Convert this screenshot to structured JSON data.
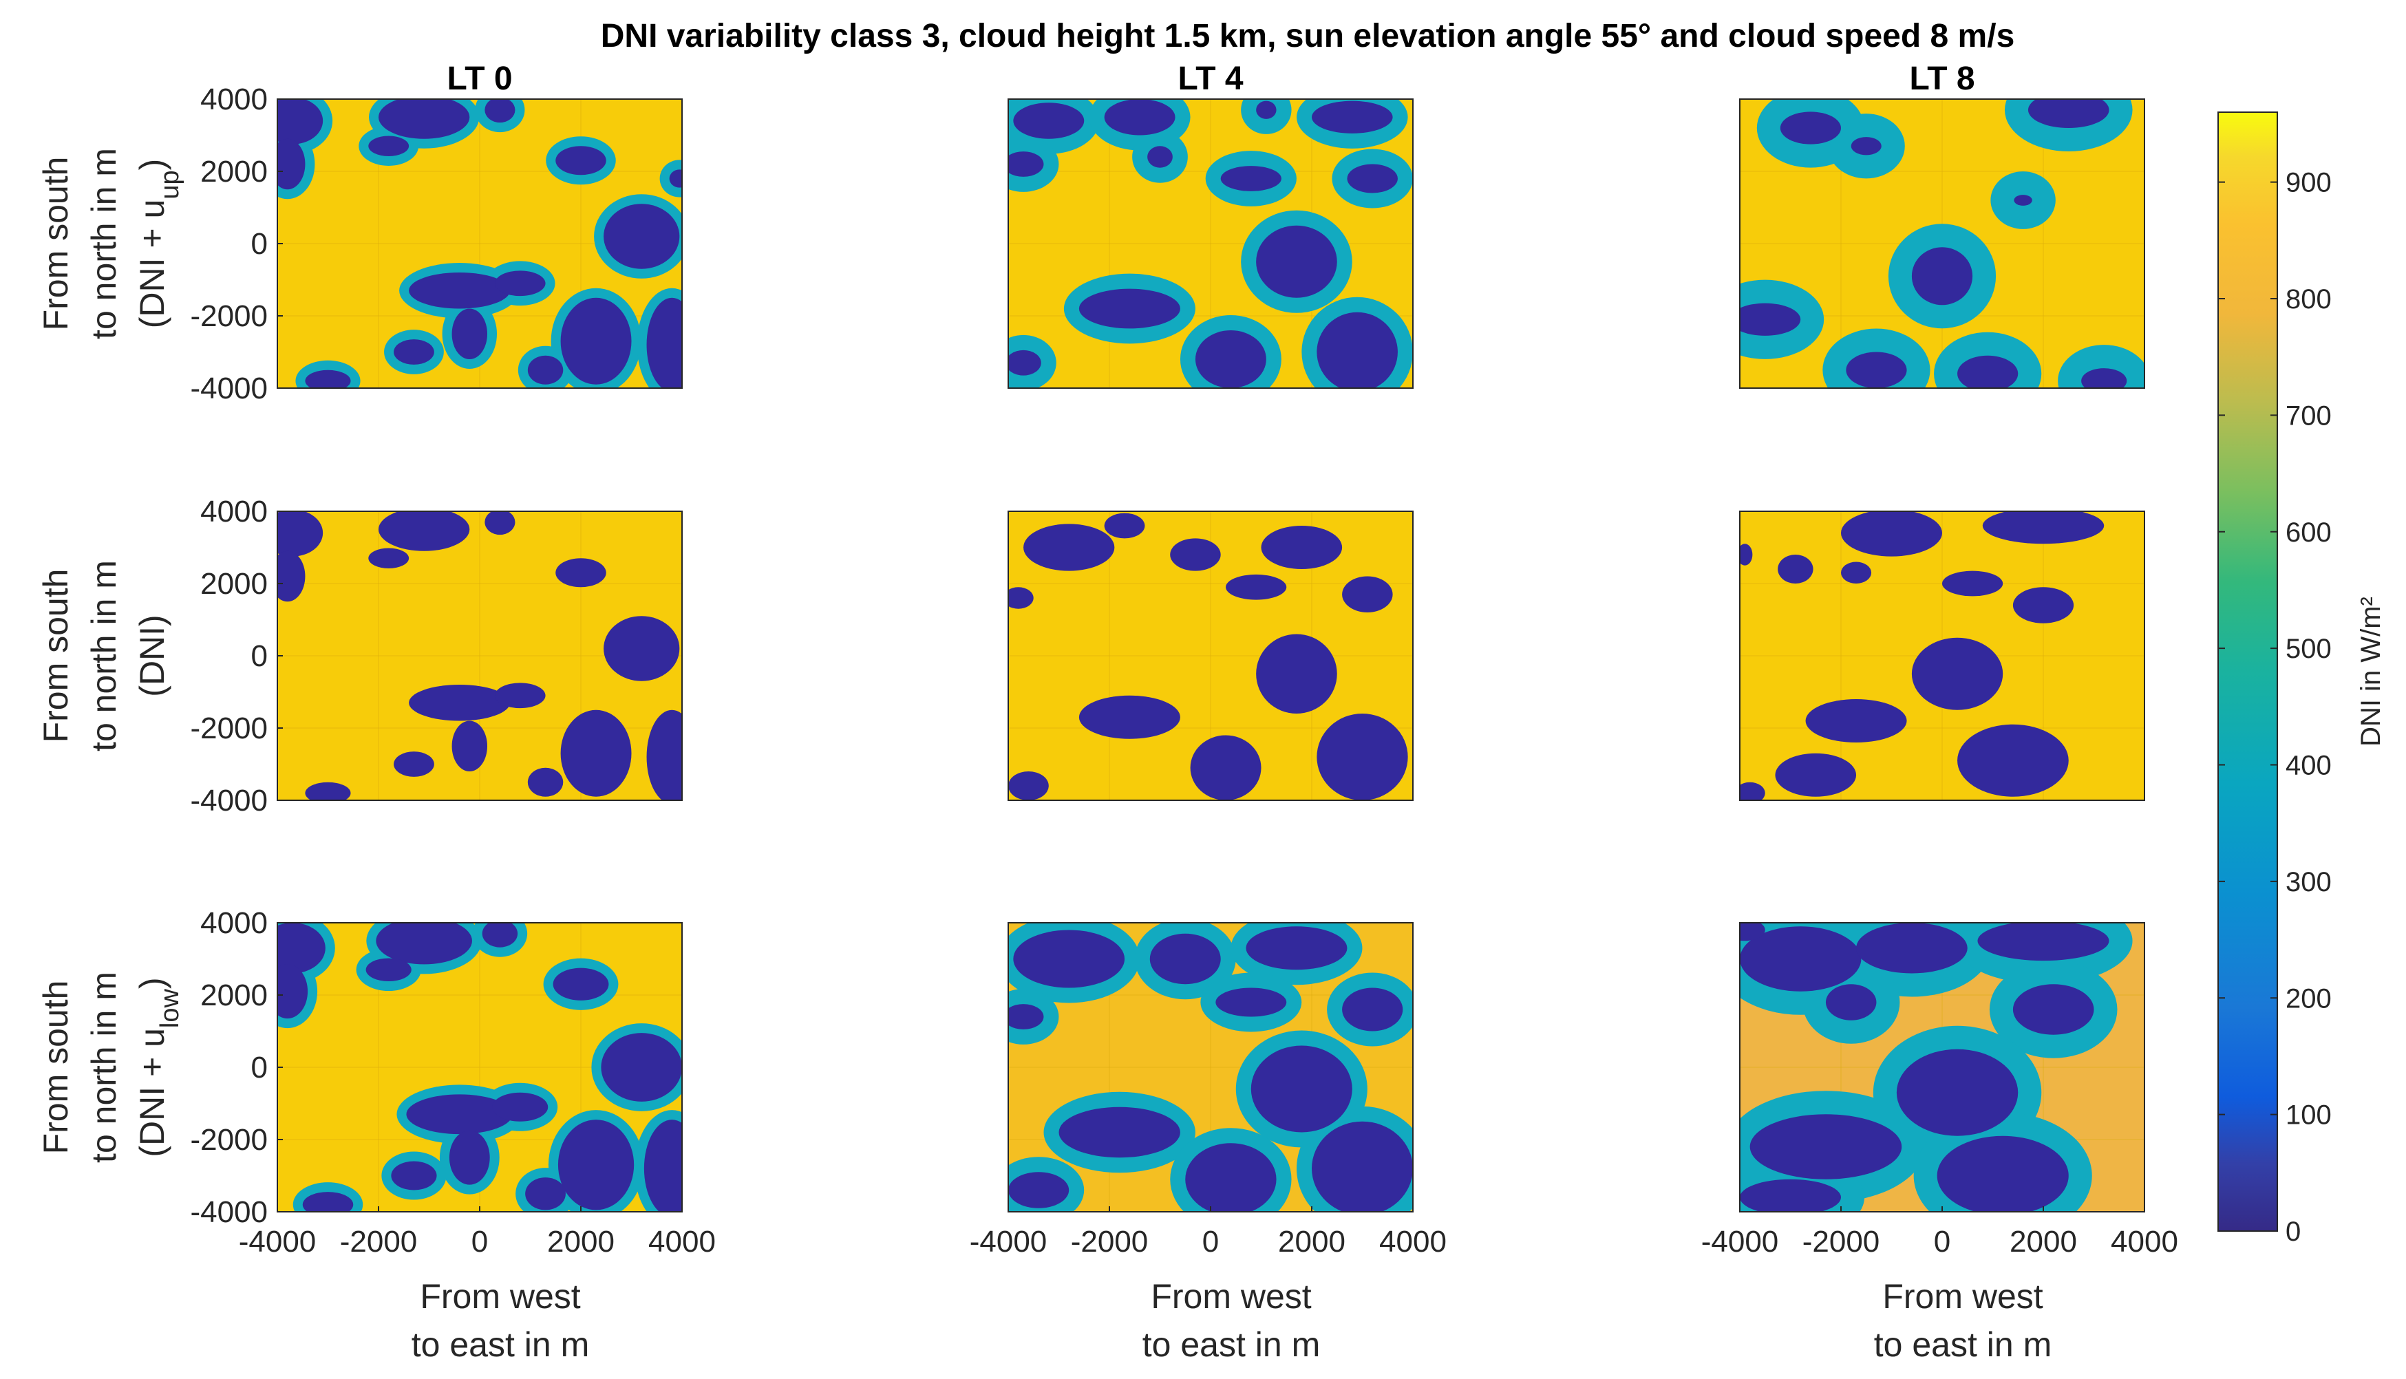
{
  "title": "DNI variability class 3, cloud height 1.5 km, sun elevation angle 55° and cloud speed 8 m/s",
  "colors": {
    "sky": "#f7cc0a",
    "sky_low_lt4": "#f4bf22",
    "sky_low_lt8": "#efb545",
    "cloud": "#33299c",
    "edge": "#12aac0",
    "grid": "#d9a80a",
    "axis": "#262626"
  },
  "chart_data": {
    "type": "heatmap",
    "columns": [
      {
        "key": "lt0",
        "title": "LT 0"
      },
      {
        "key": "lt4",
        "title": "LT 4"
      },
      {
        "key": "lt8",
        "title": "LT 8"
      }
    ],
    "rows": [
      {
        "key": "up",
        "ylabel_line1": "From south",
        "ylabel_line2": "to north in m",
        "ylabel_line3": "(DNI + u",
        "ylabel_sub": "up",
        "ylabel_end": ")"
      },
      {
        "key": "dni",
        "ylabel_line1": "From south",
        "ylabel_line2": "to north in m",
        "ylabel_line3": "(DNI)",
        "ylabel_sub": "",
        "ylabel_end": ""
      },
      {
        "key": "low",
        "ylabel_line1": "From south",
        "ylabel_line2": "to north in m",
        "ylabel_line3": "(DNI + u",
        "ylabel_sub": "low",
        "ylabel_end": ")"
      }
    ],
    "xlabel_line1": "From west",
    "xlabel_line2": "to east in m",
    "xlim": [
      -4000,
      4000
    ],
    "ylim": [
      -4000,
      4000
    ],
    "xticks": [
      -4000,
      -2000,
      0,
      2000,
      4000
    ],
    "xtick_labels": [
      "-4000",
      "-2000",
      "0",
      "2000",
      "4000"
    ],
    "yticks": [
      4000,
      2000,
      0,
      -2000,
      -4000
    ],
    "ytick_labels": [
      "4000",
      "2000",
      "0",
      "-2000",
      "-4000"
    ],
    "colorbar": {
      "label": "DNI in W/m²",
      "range": [
        0,
        960
      ],
      "ticks": [
        0,
        100,
        200,
        300,
        400,
        500,
        600,
        700,
        800,
        900
      ],
      "tick_labels": [
        "0",
        "100",
        "200",
        "300",
        "400",
        "500",
        "600",
        "700",
        "800",
        "900"
      ]
    },
    "sky_dni_estimates": {
      "lt0": 910,
      "lt4": 880,
      "lt8": 830
    },
    "cloud_dni_estimate": 20,
    "clouds": {
      "lt0": [
        {
          "x": -3700,
          "y": 3400,
          "rx": 600,
          "ry": 650
        },
        {
          "x": -3800,
          "y": 2200,
          "rx": 350,
          "ry": 700
        },
        {
          "x": -1100,
          "y": 3500,
          "rx": 900,
          "ry": 600
        },
        {
          "x": -1800,
          "y": 2700,
          "rx": 400,
          "ry": 280
        },
        {
          "x": 400,
          "y": 3700,
          "rx": 300,
          "ry": 350
        },
        {
          "x": 2000,
          "y": 2300,
          "rx": 500,
          "ry": 400
        },
        {
          "x": 3200,
          "y": 200,
          "rx": 750,
          "ry": 900
        },
        {
          "x": 3950,
          "y": 1800,
          "rx": 200,
          "ry": 250
        },
        {
          "x": -400,
          "y": -1300,
          "rx": 1000,
          "ry": 500
        },
        {
          "x": -200,
          "y": -2500,
          "rx": 350,
          "ry": 700
        },
        {
          "x": 800,
          "y": -1100,
          "rx": 500,
          "ry": 350
        },
        {
          "x": 2300,
          "y": -2700,
          "rx": 700,
          "ry": 1200
        },
        {
          "x": 1300,
          "y": -3500,
          "rx": 350,
          "ry": 400
        },
        {
          "x": -1300,
          "y": -3000,
          "rx": 400,
          "ry": 350
        },
        {
          "x": 3800,
          "y": -2800,
          "rx": 500,
          "ry": 1300
        },
        {
          "x": -3000,
          "y": -3800,
          "rx": 450,
          "ry": 300
        }
      ],
      "lt4": [
        {
          "x": -3200,
          "y": 3400,
          "rx": 700,
          "ry": 500
        },
        {
          "x": -3700,
          "y": 2200,
          "rx": 400,
          "ry": 350
        },
        {
          "x": -1400,
          "y": 3500,
          "rx": 700,
          "ry": 500
        },
        {
          "x": -1000,
          "y": 2400,
          "rx": 250,
          "ry": 300
        },
        {
          "x": 2800,
          "y": 3500,
          "rx": 800,
          "ry": 450
        },
        {
          "x": 1100,
          "y": 3700,
          "rx": 200,
          "ry": 250
        },
        {
          "x": 800,
          "y": 1800,
          "rx": 600,
          "ry": 350
        },
        {
          "x": 3200,
          "y": 1800,
          "rx": 500,
          "ry": 400
        },
        {
          "x": 1700,
          "y": -500,
          "rx": 800,
          "ry": 1000
        },
        {
          "x": -1600,
          "y": -1800,
          "rx": 1000,
          "ry": 550
        },
        {
          "x": 400,
          "y": -3200,
          "rx": 700,
          "ry": 800
        },
        {
          "x": 2900,
          "y": -3000,
          "rx": 800,
          "ry": 1100
        },
        {
          "x": -3700,
          "y": -3300,
          "rx": 350,
          "ry": 350
        }
      ],
      "lt8": [
        {
          "x": -2600,
          "y": 3200,
          "rx": 600,
          "ry": 450
        },
        {
          "x": -1500,
          "y": 2700,
          "rx": 300,
          "ry": 250
        },
        {
          "x": 2500,
          "y": 3700,
          "rx": 800,
          "ry": 500
        },
        {
          "x": 1600,
          "y": 1200,
          "rx": 180,
          "ry": 150
        },
        {
          "x": 0,
          "y": -900,
          "rx": 600,
          "ry": 800
        },
        {
          "x": -3500,
          "y": -2100,
          "rx": 700,
          "ry": 450
        },
        {
          "x": -1300,
          "y": -3500,
          "rx": 600,
          "ry": 500
        },
        {
          "x": 900,
          "y": -3600,
          "rx": 600,
          "ry": 500
        },
        {
          "x": 3200,
          "y": -3800,
          "rx": 450,
          "ry": 350
        }
      ],
      "dni_lt0": [
        {
          "x": -3700,
          "y": 3400,
          "rx": 600,
          "ry": 650
        },
        {
          "x": -3800,
          "y": 2200,
          "rx": 350,
          "ry": 700
        },
        {
          "x": -1100,
          "y": 3500,
          "rx": 900,
          "ry": 600
        },
        {
          "x": -1800,
          "y": 2700,
          "rx": 400,
          "ry": 280
        },
        {
          "x": 400,
          "y": 3700,
          "rx": 300,
          "ry": 350
        },
        {
          "x": 2000,
          "y": 2300,
          "rx": 500,
          "ry": 400
        },
        {
          "x": 3200,
          "y": 200,
          "rx": 750,
          "ry": 900
        },
        {
          "x": -400,
          "y": -1300,
          "rx": 1000,
          "ry": 500
        },
        {
          "x": -200,
          "y": -2500,
          "rx": 350,
          "ry": 700
        },
        {
          "x": 800,
          "y": -1100,
          "rx": 500,
          "ry": 350
        },
        {
          "x": 2300,
          "y": -2700,
          "rx": 700,
          "ry": 1200
        },
        {
          "x": 1300,
          "y": -3500,
          "rx": 350,
          "ry": 400
        },
        {
          "x": -1300,
          "y": -3000,
          "rx": 400,
          "ry": 350
        },
        {
          "x": 3800,
          "y": -2800,
          "rx": 500,
          "ry": 1300
        },
        {
          "x": -3000,
          "y": -3800,
          "rx": 450,
          "ry": 300
        }
      ],
      "dni_lt4": [
        {
          "x": -2800,
          "y": 3000,
          "rx": 900,
          "ry": 650
        },
        {
          "x": -3800,
          "y": 1600,
          "rx": 300,
          "ry": 300
        },
        {
          "x": -300,
          "y": 2800,
          "rx": 500,
          "ry": 450
        },
        {
          "x": -1700,
          "y": 3600,
          "rx": 400,
          "ry": 350
        },
        {
          "x": 1800,
          "y": 3000,
          "rx": 800,
          "ry": 600
        },
        {
          "x": 900,
          "y": 1900,
          "rx": 600,
          "ry": 350
        },
        {
          "x": 3100,
          "y": 1700,
          "rx": 500,
          "ry": 500
        },
        {
          "x": 1700,
          "y": -500,
          "rx": 800,
          "ry": 1100
        },
        {
          "x": -1600,
          "y": -1700,
          "rx": 1000,
          "ry": 600
        },
        {
          "x": 300,
          "y": -3100,
          "rx": 700,
          "ry": 900
        },
        {
          "x": 3000,
          "y": -2800,
          "rx": 900,
          "ry": 1200
        },
        {
          "x": -3600,
          "y": -3600,
          "rx": 400,
          "ry": 400
        }
      ],
      "dni_lt8": [
        {
          "x": -1000,
          "y": 3400,
          "rx": 1000,
          "ry": 650
        },
        {
          "x": 2000,
          "y": 3600,
          "rx": 1200,
          "ry": 500
        },
        {
          "x": -2900,
          "y": 2400,
          "rx": 350,
          "ry": 400
        },
        {
          "x": -1700,
          "y": 2300,
          "rx": 300,
          "ry": 300
        },
        {
          "x": 600,
          "y": 2000,
          "rx": 600,
          "ry": 350
        },
        {
          "x": 2000,
          "y": 1400,
          "rx": 600,
          "ry": 500
        },
        {
          "x": 300,
          "y": -500,
          "rx": 900,
          "ry": 1000
        },
        {
          "x": -1700,
          "y": -1800,
          "rx": 1000,
          "ry": 600
        },
        {
          "x": -2500,
          "y": -3300,
          "rx": 800,
          "ry": 600
        },
        {
          "x": 1400,
          "y": -2900,
          "rx": 1100,
          "ry": 1000
        },
        {
          "x": -3900,
          "y": 2800,
          "rx": 150,
          "ry": 300
        },
        {
          "x": -3800,
          "y": -3800,
          "rx": 300,
          "ry": 300
        }
      ],
      "low_lt0": [
        {
          "x": -3700,
          "y": 3300,
          "rx": 650,
          "ry": 700
        },
        {
          "x": -3800,
          "y": 2100,
          "rx": 400,
          "ry": 750
        },
        {
          "x": -1100,
          "y": 3500,
          "rx": 950,
          "ry": 650
        },
        {
          "x": -1800,
          "y": 2700,
          "rx": 450,
          "ry": 320
        },
        {
          "x": 400,
          "y": 3700,
          "rx": 350,
          "ry": 380
        },
        {
          "x": 2000,
          "y": 2300,
          "rx": 550,
          "ry": 450
        },
        {
          "x": 3200,
          "y": 0,
          "rx": 800,
          "ry": 950
        },
        {
          "x": -400,
          "y": -1300,
          "rx": 1050,
          "ry": 550
        },
        {
          "x": -200,
          "y": -2500,
          "rx": 400,
          "ry": 750
        },
        {
          "x": 800,
          "y": -1100,
          "rx": 550,
          "ry": 400
        },
        {
          "x": 2300,
          "y": -2700,
          "rx": 750,
          "ry": 1250
        },
        {
          "x": 1300,
          "y": -3500,
          "rx": 400,
          "ry": 450
        },
        {
          "x": -1300,
          "y": -3000,
          "rx": 450,
          "ry": 400
        },
        {
          "x": 3800,
          "y": -2800,
          "rx": 550,
          "ry": 1350
        },
        {
          "x": -3000,
          "y": -3800,
          "rx": 500,
          "ry": 350
        }
      ],
      "low_lt4": [
        {
          "x": -2800,
          "y": 3000,
          "rx": 1100,
          "ry": 800
        },
        {
          "x": -3700,
          "y": 1400,
          "rx": 400,
          "ry": 350
        },
        {
          "x": -500,
          "y": 3000,
          "rx": 700,
          "ry": 700
        },
        {
          "x": 1700,
          "y": 3300,
          "rx": 1000,
          "ry": 600
        },
        {
          "x": 800,
          "y": 1800,
          "rx": 700,
          "ry": 400
        },
        {
          "x": 3200,
          "y": 1600,
          "rx": 600,
          "ry": 600
        },
        {
          "x": 1800,
          "y": -600,
          "rx": 1000,
          "ry": 1200
        },
        {
          "x": -1800,
          "y": -1800,
          "rx": 1200,
          "ry": 700
        },
        {
          "x": 400,
          "y": -3100,
          "rx": 900,
          "ry": 1000
        },
        {
          "x": 3000,
          "y": -2800,
          "rx": 1000,
          "ry": 1300
        },
        {
          "x": -3400,
          "y": -3400,
          "rx": 600,
          "ry": 500
        }
      ],
      "low_lt8": [
        {
          "x": -2800,
          "y": 3000,
          "rx": 1200,
          "ry": 900
        },
        {
          "x": -600,
          "y": 3300,
          "rx": 1100,
          "ry": 700
        },
        {
          "x": 2000,
          "y": 3500,
          "rx": 1300,
          "ry": 550
        },
        {
          "x": -1800,
          "y": 1800,
          "rx": 500,
          "ry": 500
        },
        {
          "x": 2200,
          "y": 1600,
          "rx": 800,
          "ry": 700
        },
        {
          "x": 300,
          "y": -700,
          "rx": 1200,
          "ry": 1200
        },
        {
          "x": -2300,
          "y": -2200,
          "rx": 1500,
          "ry": 900
        },
        {
          "x": -3000,
          "y": -3600,
          "rx": 1000,
          "ry": 500
        },
        {
          "x": 1200,
          "y": -3000,
          "rx": 1300,
          "ry": 1100
        },
        {
          "x": -3900,
          "y": 3800,
          "rx": 400,
          "ry": 300
        }
      ]
    }
  }
}
